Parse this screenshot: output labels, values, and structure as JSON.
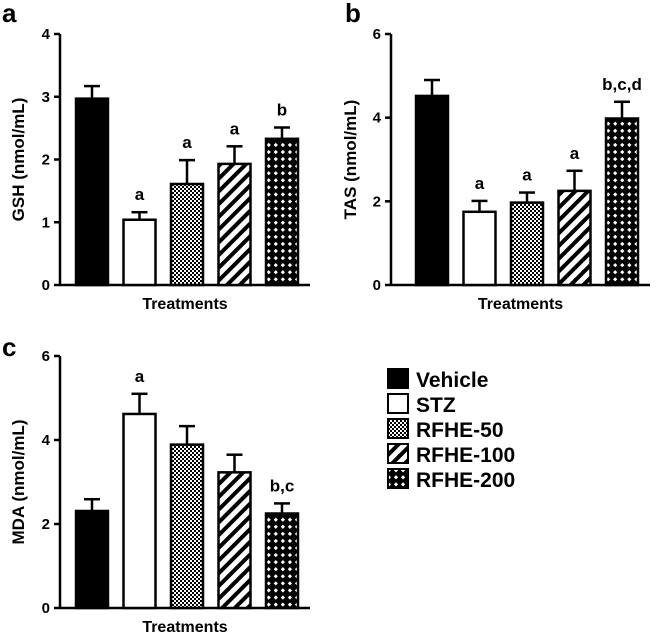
{
  "chart_data": [
    {
      "panel": "a",
      "type": "bar",
      "categories": [
        "Vehicle",
        "STZ",
        "RFHE-50",
        "RFHE-100",
        "RFHE-200"
      ],
      "values": [
        2.97,
        1.04,
        1.61,
        1.93,
        2.33
      ],
      "errors": [
        0.2,
        0.12,
        0.38,
        0.28,
        0.18
      ],
      "significance": [
        "",
        "a",
        "a",
        "a",
        "b"
      ],
      "ylabel": "GSH (nmol/mL)",
      "xlabel": "Treatments",
      "ylim": [
        0,
        4
      ],
      "yticks": [
        "0",
        "1",
        "2",
        "3",
        "4"
      ]
    },
    {
      "panel": "b",
      "type": "bar",
      "categories": [
        "Vehicle",
        "STZ",
        "RFHE-50",
        "RFHE-100",
        "RFHE-200"
      ],
      "values": [
        4.52,
        1.75,
        1.97,
        2.25,
        3.98
      ],
      "errors": [
        0.38,
        0.26,
        0.24,
        0.48,
        0.4
      ],
      "significance": [
        "",
        "a",
        "a",
        "a",
        "b,c,d"
      ],
      "ylabel": "TAS (nmol/mL)",
      "xlabel": "Treatments",
      "ylim": [
        0,
        6
      ],
      "yticks": [
        "0",
        "2",
        "4",
        "6"
      ]
    },
    {
      "panel": "c",
      "type": "bar",
      "categories": [
        "Vehicle",
        "STZ",
        "RFHE-50",
        "RFHE-100",
        "RFHE-200"
      ],
      "values": [
        2.31,
        4.62,
        3.89,
        3.23,
        2.25
      ],
      "errors": [
        0.28,
        0.48,
        0.44,
        0.42,
        0.24
      ],
      "significance": [
        "",
        "a",
        "",
        "",
        "b,c"
      ],
      "ylabel": "MDA (nmol/mL)",
      "xlabel": "Treatments",
      "ylim": [
        0,
        6
      ],
      "yticks": [
        "0",
        "2",
        "4",
        "6"
      ]
    }
  ],
  "legend": {
    "items": [
      {
        "label": "Vehicle",
        "pattern": "solid"
      },
      {
        "label": "STZ",
        "pattern": "empty"
      },
      {
        "label": "RFHE-50",
        "pattern": "dots"
      },
      {
        "label": "RFHE-100",
        "pattern": "stripes"
      },
      {
        "label": "RFHE-200",
        "pattern": "checker"
      }
    ]
  },
  "colors": {
    "ink": "#000000",
    "background": "#ffffff"
  }
}
